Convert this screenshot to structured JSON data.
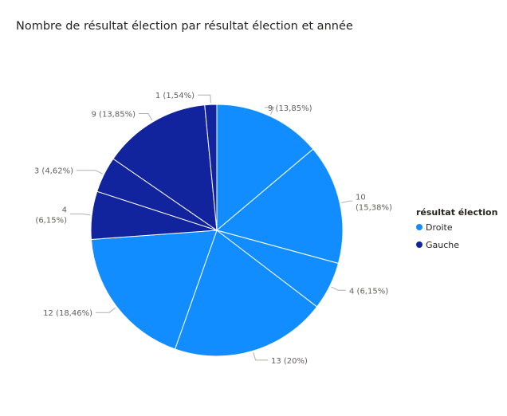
{
  "chart_data": {
    "type": "pie",
    "title": "Nombre de résultat élection par résultat élection et année",
    "legend": {
      "title": "résultat élection",
      "placement": "right",
      "items": [
        {
          "name": "Droite",
          "color": "#118dff"
        },
        {
          "name": "Gauche",
          "color": "#12239e"
        }
      ]
    },
    "slices": [
      {
        "value": 9,
        "label": "9 (13,85%)",
        "series": "Droite"
      },
      {
        "value": 10,
        "label": "10 (15,38%)",
        "series": "Droite"
      },
      {
        "value": 4,
        "label": "4 (6,15%)",
        "series": "Droite"
      },
      {
        "value": 13,
        "label": "13 (20%)",
        "series": "Droite"
      },
      {
        "value": 12,
        "label": "12 (18,46%)",
        "series": "Droite"
      },
      {
        "value": 4,
        "label": "4 (6,15%)",
        "series": "Gauche"
      },
      {
        "value": 3,
        "label": "3 (4,62%)",
        "series": "Gauche"
      },
      {
        "value": 9,
        "label": "9 (13,85%)",
        "series": "Gauche"
      },
      {
        "value": 1,
        "label": "1 (1,54%)",
        "series": "Gauche"
      }
    ]
  }
}
